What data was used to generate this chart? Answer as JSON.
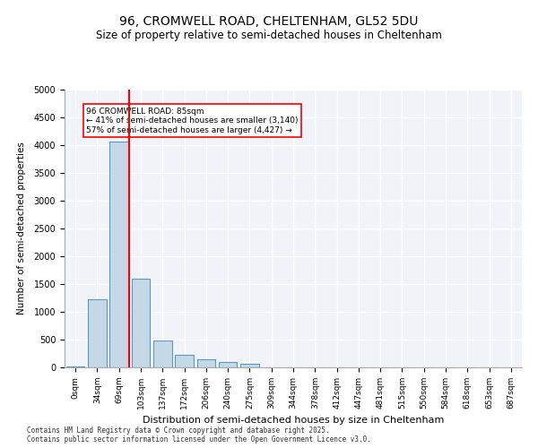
{
  "title1": "96, CROMWELL ROAD, CHELTENHAM, GL52 5DU",
  "title2": "Size of property relative to semi-detached houses in Cheltenham",
  "xlabel": "Distribution of semi-detached houses by size in Cheltenham",
  "ylabel": "Number of semi-detached properties",
  "categories": [
    "0sqm",
    "34sqm",
    "69sqm",
    "103sqm",
    "137sqm",
    "172sqm",
    "206sqm",
    "240sqm",
    "275sqm",
    "309sqm",
    "344sqm",
    "378sqm",
    "412sqm",
    "447sqm",
    "481sqm",
    "515sqm",
    "550sqm",
    "584sqm",
    "618sqm",
    "653sqm",
    "687sqm"
  ],
  "bar_values": [
    20,
    1230,
    4070,
    1600,
    480,
    220,
    150,
    100,
    70,
    0,
    0,
    0,
    0,
    0,
    0,
    0,
    0,
    0,
    0,
    0,
    0
  ],
  "bar_color": "#c5d8e8",
  "bar_edge_color": "#5a9abf",
  "property_line_x": 2.47,
  "property_size": "85sqm",
  "pct_smaller": "41%",
  "count_smaller": "3,140",
  "pct_larger": "57%",
  "count_larger": "4,427",
  "annotation_text_line1": "96 CROMWELL ROAD: 85sqm",
  "annotation_text_line2": "← 41% of semi-detached houses are smaller (3,140)",
  "annotation_text_line3": "57% of semi-detached houses are larger (4,427) →",
  "ylim": [
    0,
    5000
  ],
  "background_color": "#f0f4f8",
  "grid_color": "#ffffff",
  "footer": "Contains HM Land Registry data © Crown copyright and database right 2025.\nContains public sector information licensed under the Open Government Licence v3.0."
}
